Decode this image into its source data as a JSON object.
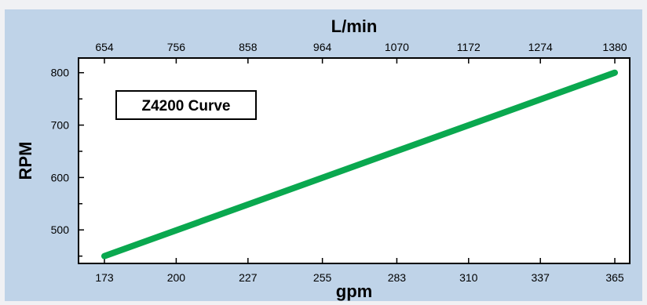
{
  "chart_data": {
    "type": "line",
    "title": "",
    "legend_box_label": "Z4200 Curve",
    "xlabel": "gpm",
    "ylabel": "RPM",
    "x2label": "L/min",
    "x_ticks": [
      173,
      200,
      227,
      255,
      283,
      310,
      337,
      365
    ],
    "x2_tick_labels": [
      "654",
      "756",
      "858",
      "964",
      "1070",
      "1172",
      "1274",
      "1380"
    ],
    "y_ticks": [
      500,
      600,
      700,
      800
    ],
    "xlim": [
      173,
      365
    ],
    "ylim": [
      436,
      828
    ],
    "grid": false,
    "series": [
      {
        "x": [
          173,
          365
        ],
        "y": [
          450,
          800
        ]
      }
    ],
    "colors": {
      "panel_background": "#bfd3e8",
      "plot_background": "#ffffff",
      "line": "#0aa84f",
      "axis": "#000000"
    }
  }
}
